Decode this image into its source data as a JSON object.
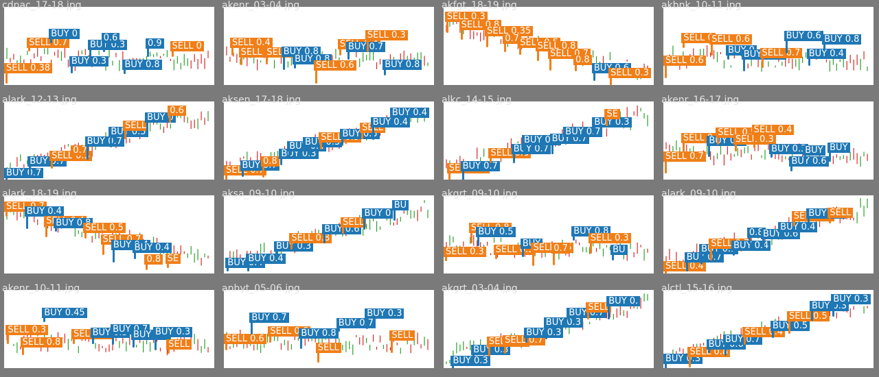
{
  "colors": {
    "buy": "#1f77b4",
    "sell": "#f07f18",
    "border": "#7a7a7a",
    "up": "#2ca02c",
    "down": "#d62728"
  },
  "tiles": [
    {
      "file": "cdnac_17-18.jpg",
      "trend": "flat",
      "labels": [
        {
          "side": "sell",
          "text": "SELL 0.38"
        },
        {
          "side": "sell",
          "text": "SELL 0.7"
        },
        {
          "side": "buy",
          "text": "BUY 0"
        },
        {
          "side": "buy",
          "text": "BUY 0.3"
        },
        {
          "side": "buy",
          "text": "BUY 0.3"
        },
        {
          "side": "buy",
          "text": "0.6"
        },
        {
          "side": "buy",
          "text": "BUY 0.8"
        },
        {
          "side": "buy",
          "text": "0.9"
        },
        {
          "side": "sell",
          "text": "SELL 0"
        }
      ]
    },
    {
      "file": "akenr_03-04.jpg",
      "trend": "flat",
      "labels": [
        {
          "side": "sell",
          "text": "SELL 0.4"
        },
        {
          "side": "sell",
          "text": "SELL 0.4"
        },
        {
          "side": "sell",
          "text": "SELL 0.8"
        },
        {
          "side": "buy",
          "text": "BUY 0.8"
        },
        {
          "side": "buy",
          "text": "BUY 0.8"
        },
        {
          "side": "sell",
          "text": "SELL 0.6"
        },
        {
          "side": "sell",
          "text": "SELL 0.4"
        },
        {
          "side": "buy",
          "text": "BUY 0.7"
        },
        {
          "side": "sell",
          "text": "SELL 0.3"
        },
        {
          "side": "buy",
          "text": "BUY 0.8"
        }
      ]
    },
    {
      "file": "akfgt_18-19.jpg",
      "trend": "down",
      "labels": [
        {
          "side": "sell",
          "text": "SELL 0.3"
        },
        {
          "side": "sell",
          "text": "SELL 0.8"
        },
        {
          "side": "sell",
          "text": "SELL 0.35"
        },
        {
          "side": "sell",
          "text": "0.7"
        },
        {
          "side": "sell",
          "text": "SELL 0.5"
        },
        {
          "side": "sell",
          "text": "SELL 0.8"
        },
        {
          "side": "sell",
          "text": "SELL 0.7"
        },
        {
          "side": "sell",
          "text": "0.8"
        },
        {
          "side": "buy",
          "text": "BUY 0.6"
        },
        {
          "side": "sell",
          "text": "SELL 0.3"
        }
      ]
    },
    {
      "file": "akbnk_10-11.jpg",
      "trend": "flat",
      "labels": [
        {
          "side": "sell",
          "text": "SELL 0.6"
        },
        {
          "side": "sell",
          "text": "SELL 0"
        },
        {
          "side": "sell",
          "text": "SELL 0.6"
        },
        {
          "side": "buy",
          "text": "BUY 0"
        },
        {
          "side": "buy",
          "text": "BUY 0.37"
        },
        {
          "side": "sell",
          "text": "SELL 0.7"
        },
        {
          "side": "buy",
          "text": "BUY 0.6"
        },
        {
          "side": "buy",
          "text": "BUY 0.4"
        },
        {
          "side": "buy",
          "text": "BUY 0.8"
        }
      ]
    },
    {
      "file": "alark_12-13.jpg",
      "trend": "up",
      "labels": [
        {
          "side": "buy",
          "text": "BUY 0.7"
        },
        {
          "side": "buy",
          "text": "BUY 0.7"
        },
        {
          "side": "sell",
          "text": "SELL 0.3"
        },
        {
          "side": "sell",
          "text": "0.7"
        },
        {
          "side": "buy",
          "text": "BUY 0.7"
        },
        {
          "side": "buy",
          "text": "BUY 0.5"
        },
        {
          "side": "sell",
          "text": "SELL"
        },
        {
          "side": "buy",
          "text": "BUY 0"
        },
        {
          "side": "sell",
          "text": "0.6"
        }
      ]
    },
    {
      "file": "aksen_17-18.jpg",
      "trend": "up",
      "labels": [
        {
          "side": "sell",
          "text": "SELL 0.7"
        },
        {
          "side": "buy",
          "text": "BUY 0.7"
        },
        {
          "side": "sell",
          "text": "0.8"
        },
        {
          "side": "buy",
          "text": "BUY 0.3"
        },
        {
          "side": "buy",
          "text": "BUY 0.4"
        },
        {
          "side": "buy",
          "text": "BUY 0.3"
        },
        {
          "side": "sell",
          "text": "SELL 0.3"
        },
        {
          "side": "buy",
          "text": "BUY 0.5"
        },
        {
          "side": "sell",
          "text": "SELL"
        },
        {
          "side": "buy",
          "text": "BUY 0.4"
        },
        {
          "side": "buy",
          "text": "BUY 0.4"
        }
      ]
    },
    {
      "file": "alkc_14-15.jpg",
      "trend": "up",
      "labels": [
        {
          "side": "sell",
          "text": "SELL 0.7"
        },
        {
          "side": "buy",
          "text": "BUY 0.7"
        },
        {
          "side": "sell",
          "text": "SELL 0.8"
        },
        {
          "side": "buy",
          "text": "BUY 0.7"
        },
        {
          "side": "buy",
          "text": "BUY 0.6"
        },
        {
          "side": "buy",
          "text": "BUY 0.7"
        },
        {
          "side": "buy",
          "text": "BUY 0.7"
        },
        {
          "side": "buy",
          "text": "BUY 0.3"
        },
        {
          "side": "sell",
          "text": "SE"
        }
      ]
    },
    {
      "file": "akenr_16-17.jpg",
      "trend": "flat",
      "labels": [
        {
          "side": "sell",
          "text": "SELL 0.7"
        },
        {
          "side": "sell",
          "text": "SELL 0.6"
        },
        {
          "side": "buy",
          "text": "BUY 0.7"
        },
        {
          "side": "sell",
          "text": "SELL 0.5"
        },
        {
          "side": "sell",
          "text": "SELL 0.3"
        },
        {
          "side": "sell",
          "text": "SELL 0.4"
        },
        {
          "side": "buy",
          "text": "BUY 0.3"
        },
        {
          "side": "buy",
          "text": "BUY 0.6"
        },
        {
          "side": "buy",
          "text": "BUY"
        },
        {
          "side": "buy",
          "text": "BUY"
        }
      ]
    },
    {
      "file": "alark_18-19.jpg",
      "trend": "down",
      "labels": [
        {
          "side": "sell",
          "text": "SELL 0.7"
        },
        {
          "side": "buy",
          "text": "BUY 0.4"
        },
        {
          "side": "sell",
          "text": "SELL 0.4"
        },
        {
          "side": "buy",
          "text": "BUY 0.8"
        },
        {
          "side": "sell",
          "text": "SELL 0.5"
        },
        {
          "side": "sell",
          "text": "SELL 0.7"
        },
        {
          "side": "buy",
          "text": "BUY 0.4"
        },
        {
          "side": "buy",
          "text": "BUY 0.4"
        },
        {
          "side": "sell",
          "text": "0.8"
        },
        {
          "side": "sell",
          "text": "SE"
        }
      ]
    },
    {
      "file": "aksa_09-10.jpg",
      "trend": "up",
      "labels": [
        {
          "side": "buy",
          "text": "BUY 0.4"
        },
        {
          "side": "buy",
          "text": "BUY 0.4"
        },
        {
          "side": "buy",
          "text": "BUY 0.3"
        },
        {
          "side": "sell",
          "text": "SELL 0.8"
        },
        {
          "side": "buy",
          "text": "BUY 0.6"
        },
        {
          "side": "sell",
          "text": "SELL"
        },
        {
          "side": "buy",
          "text": "BUY 0"
        },
        {
          "side": "buy",
          "text": "BU"
        }
      ]
    },
    {
      "file": "akgrt_09-10.jpg",
      "trend": "flat",
      "labels": [
        {
          "side": "sell",
          "text": "SELL 0.3"
        },
        {
          "side": "sell",
          "text": "SELL 0.8"
        },
        {
          "side": "buy",
          "text": "BUY 0.5"
        },
        {
          "side": "sell",
          "text": "SELL 0.3"
        },
        {
          "side": "buy",
          "text": "BUY"
        },
        {
          "side": "sell",
          "text": "SELL 0.6"
        },
        {
          "side": "sell",
          "text": "0.7"
        },
        {
          "side": "buy",
          "text": "BUY 0.8"
        },
        {
          "side": "sell",
          "text": "SELL 0.3"
        },
        {
          "side": "buy",
          "text": "BU"
        }
      ]
    },
    {
      "file": "alark_09-10.jpg",
      "trend": "up",
      "labels": [
        {
          "side": "sell",
          "text": "SELL 0.4"
        },
        {
          "side": "buy",
          "text": "BUY 0.7"
        },
        {
          "side": "buy",
          "text": "BUY 0.3"
        },
        {
          "side": "sell",
          "text": "SELL 0.7"
        },
        {
          "side": "buy",
          "text": "BUY 0.4"
        },
        {
          "side": "buy",
          "text": "0.8"
        },
        {
          "side": "buy",
          "text": "BUY 0.6"
        },
        {
          "side": "buy",
          "text": "BUY 0.4"
        },
        {
          "side": "sell",
          "text": "SELL 0.7"
        },
        {
          "side": "buy",
          "text": "BUY 0.4"
        },
        {
          "side": "sell",
          "text": "SELL"
        }
      ]
    },
    {
      "file": "akenr_10-11.jpg",
      "trend": "flat",
      "labels": [
        {
          "side": "sell",
          "text": "SELL 0.3"
        },
        {
          "side": "sell",
          "text": "SELL 0.8"
        },
        {
          "side": "buy",
          "text": "BUY 0.45"
        },
        {
          "side": "sell",
          "text": "SELL 0.4"
        },
        {
          "side": "buy",
          "text": "BUY 0.3"
        },
        {
          "side": "buy",
          "text": "BUY 0.7"
        },
        {
          "side": "buy",
          "text": "BUY 0.3"
        },
        {
          "side": "buy",
          "text": "BUY 0.3"
        },
        {
          "side": "sell",
          "text": "SELL"
        }
      ]
    },
    {
      "file": "anhyt_05-06.jpg",
      "trend": "flat",
      "labels": [
        {
          "side": "sell",
          "text": "SELL 0.6"
        },
        {
          "side": "buy",
          "text": "BUY 0.7"
        },
        {
          "side": "sell",
          "text": "SELL 0.6"
        },
        {
          "side": "buy",
          "text": "BUY 0.8"
        },
        {
          "side": "sell",
          "text": "SELL"
        },
        {
          "side": "buy",
          "text": "BUY 0.7"
        },
        {
          "side": "buy",
          "text": "BUY 0.3"
        },
        {
          "side": "sell",
          "text": "SELL"
        }
      ]
    },
    {
      "file": "akgrt_03-04.jpg",
      "trend": "up",
      "labels": [
        {
          "side": "buy",
          "text": "BUY 0.3"
        },
        {
          "side": "buy",
          "text": "BUY 0.3"
        },
        {
          "side": "sell",
          "text": "SELL 0.3"
        },
        {
          "side": "sell",
          "text": "SELL 0.7"
        },
        {
          "side": "buy",
          "text": "BUY 0.3"
        },
        {
          "side": "buy",
          "text": "BUY 0.3"
        },
        {
          "side": "buy",
          "text": "BUY 0.7"
        },
        {
          "side": "sell",
          "text": "SELL"
        },
        {
          "side": "buy",
          "text": "BUY 0."
        }
      ]
    },
    {
      "file": "alctl_15-16.jpg",
      "trend": "up",
      "labels": [
        {
          "side": "buy",
          "text": "BUY 0.3"
        },
        {
          "side": "sell",
          "text": "SELL 0.8"
        },
        {
          "side": "buy",
          "text": "BUY 0.6"
        },
        {
          "side": "buy",
          "text": "BUY 0.7"
        },
        {
          "side": "sell",
          "text": "SELL 0.4"
        },
        {
          "side": "buy",
          "text": "BUY 0.5"
        },
        {
          "side": "sell",
          "text": "SELL 0.5"
        },
        {
          "side": "buy",
          "text": "BUY 0.3"
        },
        {
          "side": "buy",
          "text": "BUY 0.3"
        }
      ]
    }
  ]
}
